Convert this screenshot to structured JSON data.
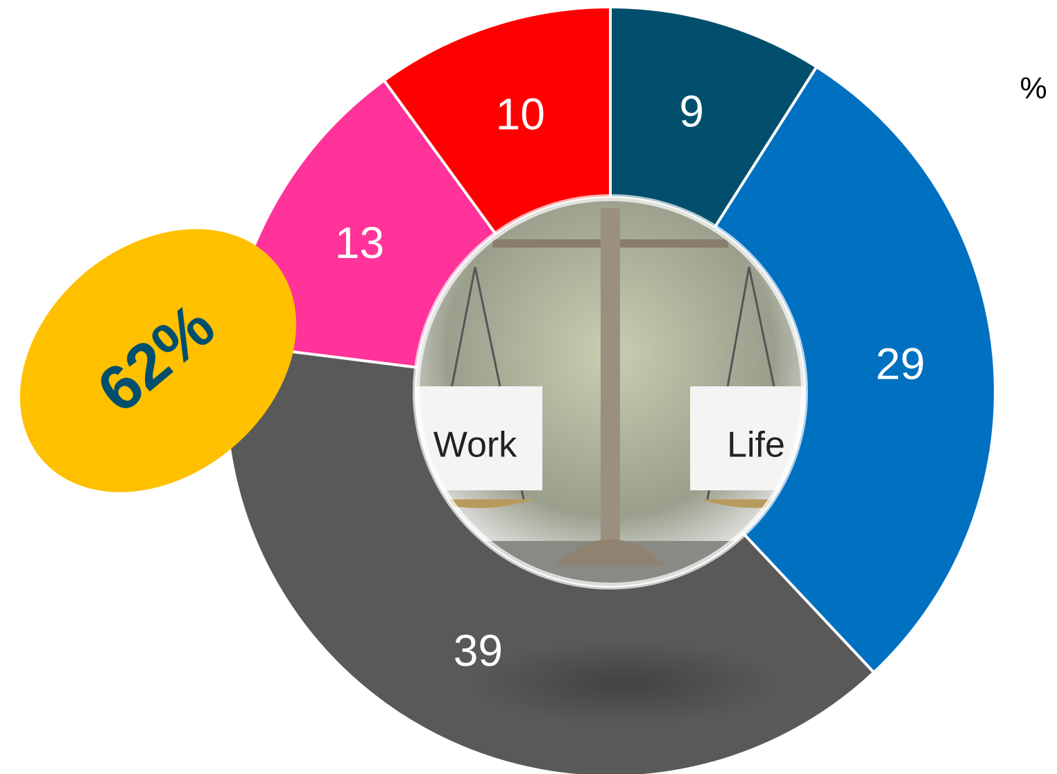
{
  "chart_data": {
    "type": "donut",
    "values": [
      9,
      29,
      39,
      13,
      10
    ],
    "colors": [
      "#024f6d",
      "#0070c0",
      "#595959",
      "#ff3399",
      "#ff0000"
    ],
    "unit_label": "%",
    "annotation": "62%",
    "center_image_labels": [
      "Work",
      "Life"
    ]
  }
}
